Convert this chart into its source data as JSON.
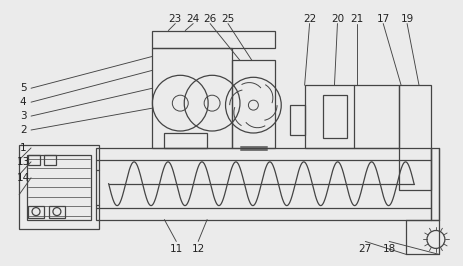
{
  "fig_width": 4.64,
  "fig_height": 2.66,
  "dpi": 100,
  "bg_color": "#ebebeb",
  "line_color": "#444444",
  "lw": 0.9,
  "label_fontsize": 7.5,
  "label_color": "#222222"
}
